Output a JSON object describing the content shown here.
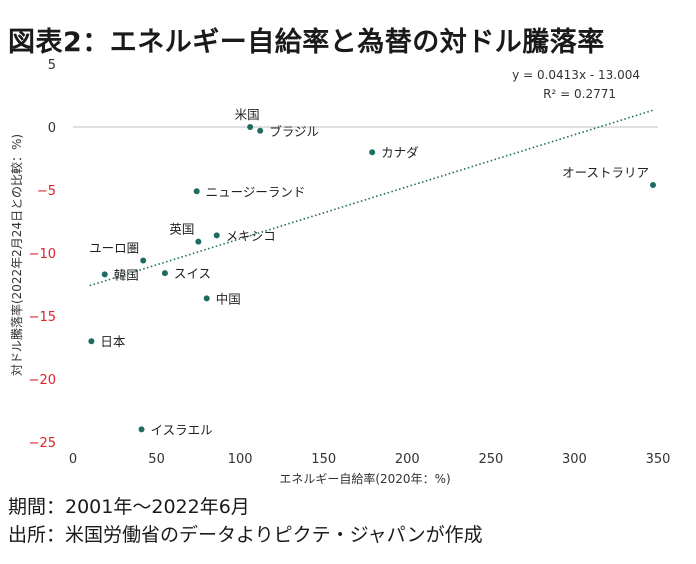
{
  "title": "図表2：エネルギー自給率と為替の対ドル騰落率",
  "footer": {
    "period": "期間：2001年～2022年6月",
    "source": "出所：米国労働省のデータよりピクテ・ジャパンが作成"
  },
  "chart_data": {
    "type": "scatter",
    "xlabel": "エネルギー自給率(2020年：%)",
    "ylabel": "対ドル騰落率(2022年2月24日との比較：%)",
    "xlim": [
      0,
      350
    ],
    "ylim": [
      -25,
      5
    ],
    "x_ticks": [
      0,
      50,
      100,
      150,
      200,
      250,
      300,
      350
    ],
    "y_ticks": [
      5,
      0,
      -5,
      -10,
      -15,
      -20,
      -25
    ],
    "grid": false,
    "negative_tick_color": "#e0202a",
    "point_color": "#1e6b62",
    "trendline": {
      "slope": 0.0413,
      "intercept": -13.004,
      "equation": "y = 0.0413x - 13.004",
      "r2": "R² = 0.2771",
      "style": "dotted",
      "color": "#1e6b62"
    },
    "points": [
      {
        "label": "米国",
        "x": 106,
        "y": 0.0,
        "label_pos": "above"
      },
      {
        "label": "ブラジル",
        "x": 112,
        "y": -0.3,
        "label_pos": "right"
      },
      {
        "label": "カナダ",
        "x": 179,
        "y": -2.0,
        "label_pos": "right"
      },
      {
        "label": "オーストラリア",
        "x": 347,
        "y": -4.6,
        "label_pos": "above-left"
      },
      {
        "label": "ニュージーランド",
        "x": 74,
        "y": -5.1,
        "label_pos": "right"
      },
      {
        "label": "英国",
        "x": 75,
        "y": -9.1,
        "label_pos": "above-left"
      },
      {
        "label": "メキシコ",
        "x": 86,
        "y": -8.6,
        "label_pos": "right"
      },
      {
        "label": "ユーロ圏",
        "x": 42,
        "y": -10.6,
        "label_pos": "above-left"
      },
      {
        "label": "韓国",
        "x": 19,
        "y": -11.7,
        "label_pos": "right"
      },
      {
        "label": "スイス",
        "x": 55,
        "y": -11.6,
        "label_pos": "right"
      },
      {
        "label": "中国",
        "x": 80,
        "y": -13.6,
        "label_pos": "right"
      },
      {
        "label": "日本",
        "x": 11,
        "y": -17.0,
        "label_pos": "right"
      },
      {
        "label": "イスラエル",
        "x": 41,
        "y": -24.0,
        "label_pos": "right"
      }
    ]
  }
}
